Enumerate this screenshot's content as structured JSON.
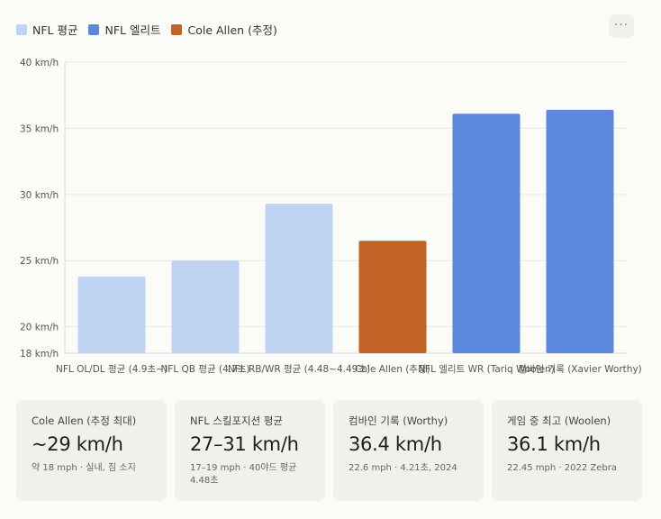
{
  "legend": [
    {
      "label": "NFL 평균",
      "color": "#bfd3f3"
    },
    {
      "label": "NFL 엘리트",
      "color": "#5b88dd"
    },
    {
      "label": "Cole Allen (추정)",
      "color": "#c26427"
    }
  ],
  "menu_icon": "more-horizontal-icon",
  "chart_data": {
    "type": "bar",
    "categories": [
      "NFL OL/DL 평균 (4.9초~)",
      "NFL QB 평균 (4.7초)",
      "NFL RB/WR 평균 (4.48~4.49초)",
      "Cole Allen (추정)",
      "NFL 엘리트 WR (Tariq Woolen)",
      "컴바인 기록 (Xavier Worthy)"
    ],
    "values": [
      23.8,
      25.0,
      29.3,
      26.5,
      36.1,
      36.4
    ],
    "groups": [
      "NFL 평균",
      "NFL 평균",
      "NFL 평균",
      "Cole Allen (추정)",
      "NFL 엘리트",
      "NFL 엘리트"
    ],
    "colors": [
      "#bfd3f3",
      "#bfd3f3",
      "#bfd3f3",
      "#c26427",
      "#5b88dd",
      "#5b88dd"
    ],
    "ylim": [
      18,
      40
    ],
    "yticks": [
      18,
      20,
      25,
      30,
      35,
      40
    ],
    "ytick_labels": [
      "18 km/h",
      "20 km/h",
      "25 km/h",
      "30 km/h",
      "35 km/h",
      "40 km/h"
    ],
    "grid": true,
    "legend_position": "top-left"
  },
  "cards": [
    {
      "label": "Cole Allen (추정 최대)",
      "value": "~29 km/h",
      "note": "약 18 mph · 실내, 짐 소지"
    },
    {
      "label": "NFL 스킬포지션 평균",
      "value": "27–31 km/h",
      "note": "17–19 mph · 40야드 평균 4.48초"
    },
    {
      "label": "컴바인 기록 (Worthy)",
      "value": "36.4 km/h",
      "note": "22.6 mph · 4.21초, 2024"
    },
    {
      "label": "게임 중 최고 (Woolen)",
      "value": "36.1 km/h",
      "note": "22.45 mph · 2022 Zebra"
    }
  ]
}
